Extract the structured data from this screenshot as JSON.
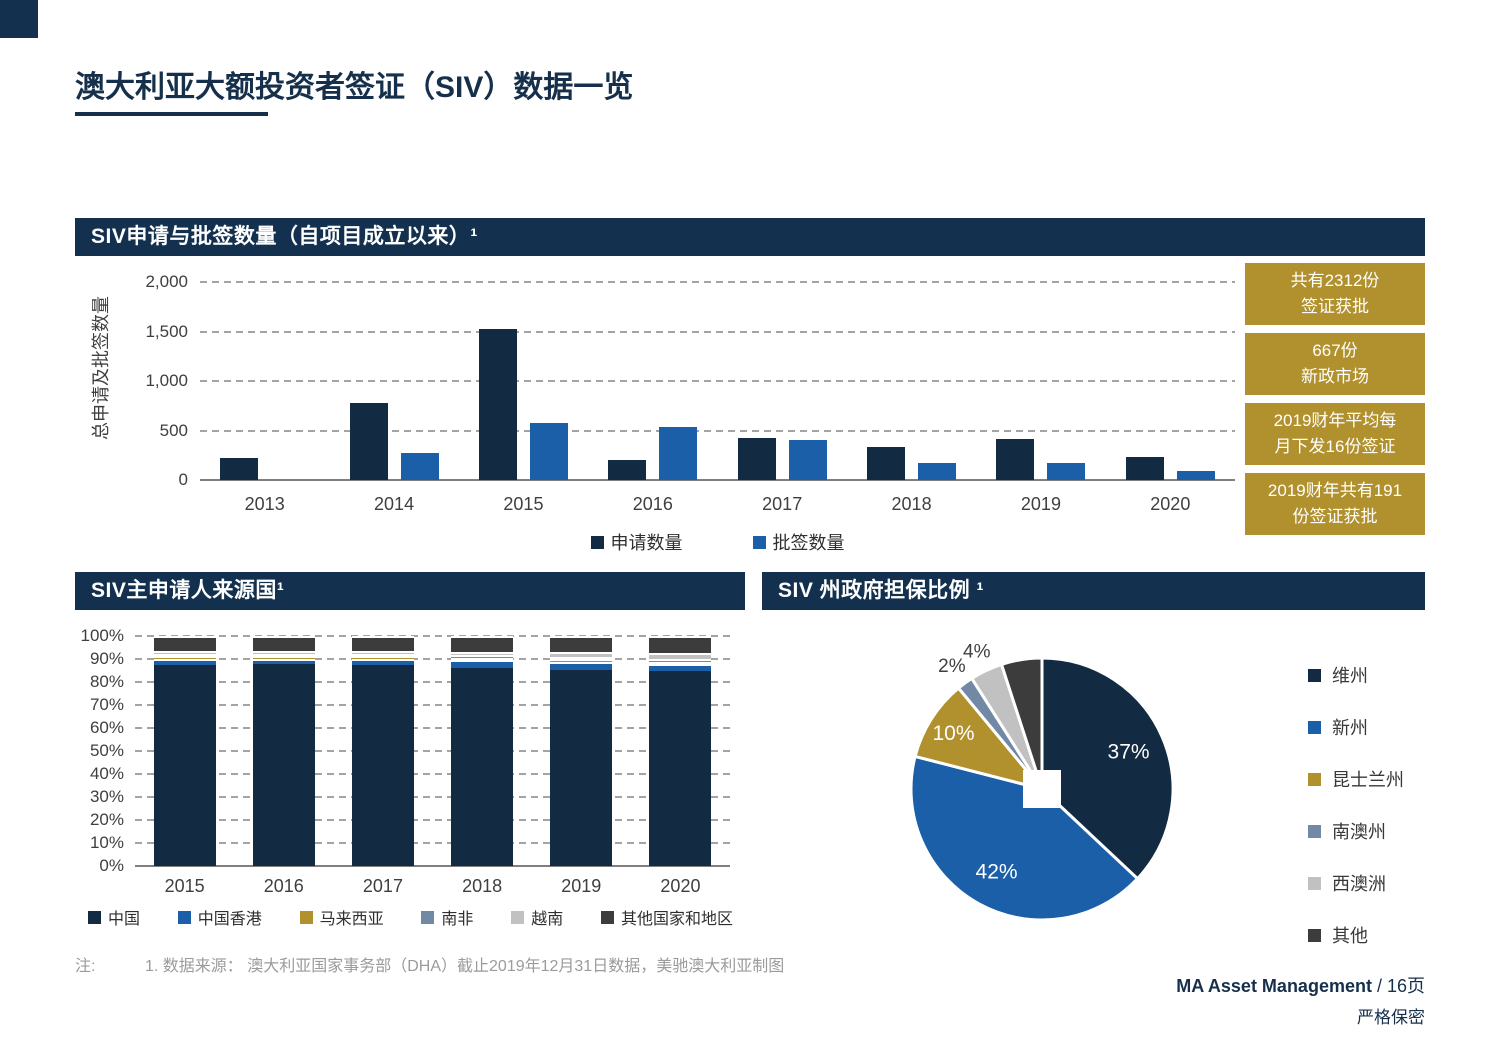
{
  "page": {
    "title": "澳大利亚大额投资者签证（SIV）数据一览",
    "note_label": "注:",
    "note_text": "1. 数据来源： 澳大利亚国家事务部（DHA）截止2019年12月31日数据，美驰澳大利亚制图",
    "footer_brand": "MA Asset Management",
    "footer_page": " / 16页",
    "footer_confidential": "严格保密"
  },
  "colors": {
    "header_navy": "#13314F",
    "bar_navy": "#122A42",
    "bar_blue": "#1A5FA8",
    "gold": "#B1912D",
    "slate": "#7289A6",
    "light_gray": "#C1C1C1",
    "charcoal": "#3C3C3C",
    "grid_gray": "#A3A3A3",
    "axis_gray": "#7F7F7F"
  },
  "callouts": [
    {
      "text": "共有2312份\n签证获批"
    },
    {
      "text": "667份\n新政市场"
    },
    {
      "text": "2019财年平均每\n月下发16份签证"
    },
    {
      "text": "2019财年共有191\n份签证获批"
    }
  ],
  "chart_data": [
    {
      "type": "bar",
      "title": "SIV申请与批签数量（自项目成立以来）¹",
      "ylabel": "总申请及批签数量",
      "xlabel": "",
      "categories": [
        "2013",
        "2014",
        "2015",
        "2016",
        "2017",
        "2018",
        "2019",
        "2020"
      ],
      "series": [
        {
          "name": "申请数量",
          "color": "#122A42",
          "values": [
            220,
            775,
            1530,
            200,
            420,
            330,
            410,
            230
          ]
        },
        {
          "name": "批签数量",
          "color": "#1A5FA8",
          "values": [
            0,
            270,
            580,
            540,
            400,
            170,
            170,
            90
          ]
        }
      ],
      "ylim": [
        0,
        2000
      ],
      "yticks": [
        "2,000",
        "1,500",
        "1,000",
        "500",
        "0"
      ],
      "grid": "dashed-horizontal",
      "legend_position": "bottom"
    },
    {
      "type": "bar",
      "stacked": true,
      "title": "SIV主申请人来源国¹",
      "xlabel": "",
      "categories": [
        "2015",
        "2016",
        "2017",
        "2018",
        "2019",
        "2020"
      ],
      "series": [
        {
          "name": "中国",
          "color": "#122A42",
          "values": [
            87.5,
            88,
            87.5,
            86.5,
            85.5,
            85
          ]
        },
        {
          "name": "中国香港",
          "color": "#1A5FA8",
          "values": [
            3,
            2.5,
            3,
            3.5,
            3.5,
            3
          ]
        },
        {
          "name": "马来西亚",
          "color": "#B1912D",
          "values": [
            1,
            1,
            1,
            0.5,
            1.5,
            0.5
          ]
        },
        {
          "name": "南非",
          "color": "#7289A6",
          "values": [
            0.5,
            0.5,
            0.5,
            1,
            0.5,
            1.5
          ]
        },
        {
          "name": "越南",
          "color": "#C1C1C1",
          "values": [
            1.5,
            1.5,
            1.5,
            1.5,
            2,
            2.5
          ]
        },
        {
          "name": "其他国家和地区",
          "color": "#3C3C3C",
          "values": [
            6.5,
            6.5,
            6.5,
            7,
            7,
            7.5
          ]
        }
      ],
      "ylim": [
        0,
        100
      ],
      "yticks": [
        "100%",
        "90%",
        "80%",
        "70%",
        "60%",
        "50%",
        "40%",
        "30%",
        "20%",
        "10%",
        "0%"
      ],
      "grid": "dashed-horizontal",
      "legend_position": "bottom"
    },
    {
      "type": "pie",
      "title": "SIV 州政府担保比例 ¹",
      "start_angle_deg": 0,
      "direction": "clockwise",
      "slices": [
        {
          "name": "维州",
          "value": 37,
          "label": "37%",
          "label_pos": "inside",
          "color": "#122A42"
        },
        {
          "name": "新州",
          "value": 42,
          "label": "42%",
          "label_pos": "inside",
          "color": "#1A5FA8"
        },
        {
          "name": "昆士兰州",
          "value": 10,
          "label": "10%",
          "label_pos": "inside",
          "color": "#B1912D"
        },
        {
          "name": "南澳州",
          "value": 2,
          "label": "2%",
          "label_pos": "outside",
          "color": "#7289A6"
        },
        {
          "name": "西澳洲",
          "value": 4,
          "label": "4%",
          "label_pos": "outside",
          "color": "#C1C1C1"
        },
        {
          "name": "其他",
          "value": 5,
          "label": "",
          "label_pos": "none",
          "color": "#3C3C3C"
        }
      ],
      "legend_position": "right"
    }
  ]
}
